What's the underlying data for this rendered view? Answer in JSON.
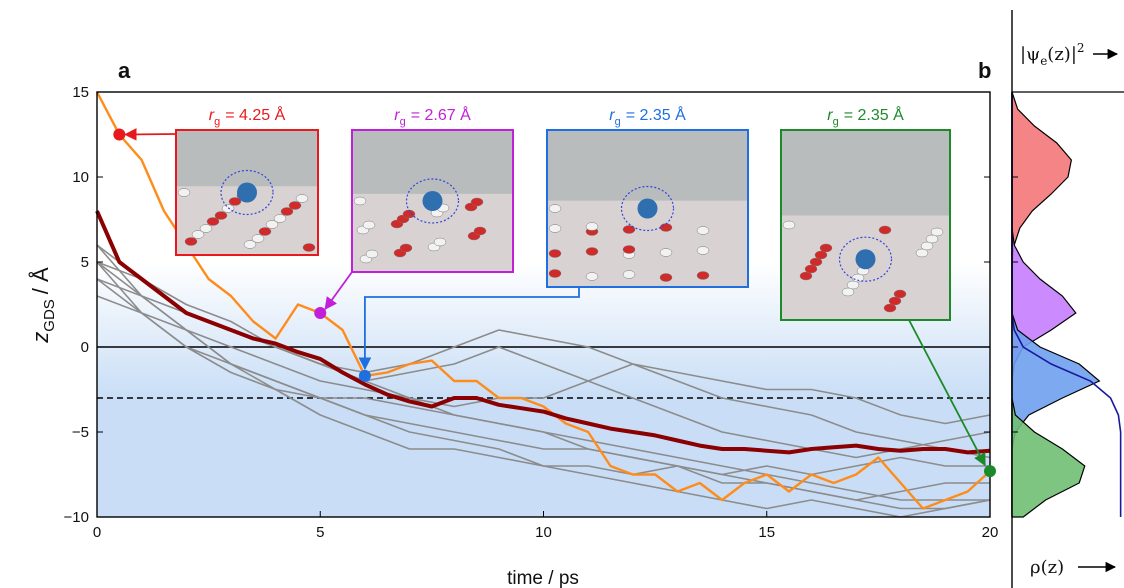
{
  "chart_data": [
    {
      "type": "line",
      "panel_label": "a",
      "xlabel": "time / ps",
      "ylabel": {
        "var": "z",
        "sub": "GDS",
        "text": "/ Å"
      },
      "xlim": [
        0,
        20
      ],
      "ylim": [
        -10,
        15
      ],
      "xticks": [
        0,
        5,
        10,
        15,
        20
      ],
      "yticks": [
        {
          "value": -10,
          "label": "−10"
        },
        {
          "value": -5,
          "label": "−5"
        },
        0,
        5,
        10,
        15
      ],
      "hlines": [
        {
          "y": 0,
          "style": "solid"
        },
        {
          "y": -3,
          "style": "dashed"
        }
      ],
      "series": [
        {
          "color": "#8c8c8c",
          "x": [
            0,
            1,
            2,
            3,
            4,
            5,
            6,
            7,
            8,
            9,
            10,
            11,
            12,
            13,
            14,
            15,
            16,
            17,
            18,
            19,
            20
          ],
          "values": [
            5,
            3,
            2,
            1,
            0,
            -1,
            -2,
            -3,
            -4,
            -4.5,
            -5,
            -5.5,
            -6,
            -6.5,
            -7,
            -7.5,
            -8,
            -8.5,
            -9,
            -9,
            -9
          ]
        },
        {
          "color": "#8c8c8c",
          "x": [
            0,
            1,
            2,
            3,
            4,
            5,
            6,
            7,
            8,
            9,
            10,
            11,
            12,
            13,
            14,
            15,
            16,
            17,
            18,
            19,
            20
          ],
          "values": [
            6,
            4,
            2.5,
            1.5,
            0,
            -1,
            -2,
            -1.5,
            -1,
            0,
            -1,
            -2,
            -3,
            -4,
            -5,
            -5.5,
            -6,
            -6.5,
            -6,
            -5.5,
            -5
          ]
        },
        {
          "color": "#8c8c8c",
          "x": [
            0,
            1,
            2,
            3,
            4,
            5,
            6,
            7,
            8,
            9,
            10,
            11,
            12,
            13,
            14,
            15,
            16,
            17,
            18,
            19,
            20
          ],
          "values": [
            4,
            3,
            1,
            -1,
            -2,
            -3,
            -3,
            -3.5,
            -4,
            -4.5,
            -5,
            -6,
            -6.5,
            -7,
            -8,
            -8,
            -8.5,
            -9,
            -8.5,
            -8,
            -8
          ]
        },
        {
          "color": "#8c8c8c",
          "x": [
            0,
            1,
            2,
            3,
            4,
            5,
            6,
            7,
            8,
            9,
            10,
            11,
            12,
            13,
            14,
            15,
            16,
            17,
            18,
            19,
            20
          ],
          "values": [
            5,
            2,
            0,
            -1.5,
            -2.5,
            -3,
            -4,
            -4.5,
            -5,
            -5.5,
            -6,
            -6,
            -6.5,
            -7,
            -7.5,
            -8,
            -8.5,
            -9,
            -9.5,
            -9.5,
            -9
          ]
        },
        {
          "color": "#8c8c8c",
          "x": [
            0,
            1,
            2,
            3,
            4,
            5,
            6,
            7,
            8,
            9,
            10,
            11,
            12,
            13,
            14,
            15,
            16,
            17,
            18,
            19,
            20
          ],
          "values": [
            3,
            2,
            0,
            -1,
            -2,
            -3,
            -4,
            -5,
            -5.5,
            -6,
            -7,
            -7.5,
            -8,
            -8.5,
            -9,
            -9.5,
            -9,
            -9.5,
            -10,
            -9.5,
            -9
          ]
        },
        {
          "color": "#8c8c8c",
          "x": [
            0,
            1,
            2,
            3,
            4,
            5,
            6,
            7,
            8,
            9,
            10,
            11,
            12,
            13,
            14,
            15,
            16,
            17,
            18,
            19,
            20
          ],
          "values": [
            5,
            4,
            2,
            1,
            0,
            -1,
            -1.5,
            -1,
            0,
            1,
            0.5,
            0,
            -1,
            -1.5,
            -2,
            -2.5,
            -2.5,
            -3,
            -4,
            -4.5,
            -4
          ]
        },
        {
          "color": "#8c8c8c",
          "x": [
            0,
            1,
            2,
            3,
            4,
            5,
            6,
            7,
            8,
            9,
            10,
            11,
            12,
            13,
            14,
            15,
            16,
            17,
            18,
            19,
            20
          ],
          "values": [
            4,
            2,
            1,
            0,
            -1,
            -2,
            -2.5,
            -3,
            -3.5,
            -3,
            -3,
            -2,
            -1,
            -2,
            -3,
            -3.5,
            -4,
            -5,
            -5.5,
            -6,
            -6.5
          ]
        },
        {
          "color": "#8c8c8c",
          "x": [
            0,
            1,
            2,
            3,
            4,
            5,
            6,
            7,
            8,
            9,
            10,
            11,
            12,
            13,
            14,
            15,
            16,
            17,
            18,
            19,
            20
          ],
          "values": [
            6,
            3,
            1,
            -1,
            -2.5,
            -4,
            -5,
            -6,
            -6,
            -6.5,
            -7,
            -7,
            -7.5,
            -7,
            -7.5,
            -7,
            -7.5,
            -7,
            -6.5,
            -7,
            -7
          ]
        },
        {
          "color": "#ff8c1a",
          "x": [
            0,
            0.5,
            1,
            1.5,
            2,
            2.5,
            3,
            3.5,
            4,
            4.5,
            5,
            5.5,
            6,
            6.5,
            7,
            7.5,
            8,
            8.5,
            9,
            9.5,
            10,
            10.5,
            11,
            11.5,
            12,
            12.5,
            13,
            13.5,
            14,
            14.5,
            15,
            15.5,
            16,
            16.5,
            17,
            17.5,
            18,
            18.5,
            19,
            19.5,
            20
          ],
          "values": [
            15,
            12.5,
            11,
            8,
            6,
            4,
            3,
            1.5,
            0.5,
            2.5,
            2,
            1,
            -1.7,
            -1.5,
            -1,
            -0.8,
            -2,
            -2,
            -3,
            -3,
            -3.5,
            -4.5,
            -5,
            -7,
            -7.5,
            -7.5,
            -8.5,
            -8,
            -9,
            -8,
            -7.5,
            -8.5,
            -7.5,
            -8,
            -7.5,
            -6.5,
            -8,
            -9.5,
            -9,
            -8.5,
            -7.3
          ]
        },
        {
          "color": "#8b0000",
          "x": [
            0,
            0.5,
            1,
            1.5,
            2,
            2.5,
            3,
            3.5,
            4,
            4.5,
            5,
            5.5,
            6,
            6.5,
            7,
            7.5,
            8,
            8.5,
            9,
            9.5,
            10,
            10.5,
            11,
            11.5,
            12,
            12.5,
            13,
            13.5,
            14,
            14.5,
            15,
            15.5,
            16,
            16.5,
            17,
            17.5,
            18,
            18.5,
            19,
            19.5,
            20
          ],
          "values": [
            8,
            5,
            4,
            3,
            2,
            1.5,
            1,
            0.5,
            0.2,
            -0.3,
            -0.7,
            -1.5,
            -2.2,
            -2.8,
            -3.2,
            -3.5,
            -3,
            -3,
            -3.4,
            -3.6,
            -3.8,
            -4.2,
            -4.5,
            -4.8,
            -5,
            -5.2,
            -5.5,
            -5.8,
            -6,
            -6,
            -6.1,
            -6.2,
            -6,
            -5.9,
            -5.8,
            -6,
            -6.1,
            -6,
            -6,
            -6.2,
            -6.1
          ]
        }
      ],
      "annotations": [
        {
          "x": 0.5,
          "y": 12.5,
          "color": "#e8191c",
          "label": {
            "var": "r",
            "sub": "g",
            "text": "= 4.25 Å"
          }
        },
        {
          "x": 5,
          "y": 2,
          "color": "#c21fd9",
          "label": {
            "var": "r",
            "sub": "g",
            "text": "= 2.67 Å"
          }
        },
        {
          "x": 6,
          "y": -1.7,
          "color": "#1f6fe0",
          "label": {
            "var": "r",
            "sub": "g",
            "text": "= 2.35 Å"
          }
        },
        {
          "x": 20,
          "y": -7.3,
          "color": "#1d8a2a",
          "label": {
            "var": "r",
            "sub": "g",
            "text": "= 2.35 Å"
          }
        }
      ]
    },
    {
      "type": "area",
      "panel_label": "b",
      "top_label": {
        "pre": "|ψ",
        "sub": "e",
        "post": "(z)|",
        "sup": "2"
      },
      "bottom_label": "ρ(z)",
      "xlim": [
        0,
        1
      ],
      "ylim": [
        -10,
        15
      ],
      "z": [
        15,
        14,
        13,
        12,
        11,
        10,
        9,
        8,
        7,
        6,
        5,
        4,
        3,
        2,
        1,
        0,
        -1,
        -2,
        -3,
        -4,
        -5,
        -6,
        -7,
        -8,
        -9,
        -10
      ],
      "series": [
        {
          "color": "#f4777a",
          "values": [
            0,
            0.05,
            0.2,
            0.4,
            0.53,
            0.5,
            0.35,
            0.18,
            0.07,
            0.02,
            0,
            0,
            0,
            0,
            0,
            0,
            0,
            0,
            0,
            0,
            0,
            0,
            0,
            0,
            0,
            0
          ]
        },
        {
          "color": "#c77dff",
          "values": [
            0,
            0,
            0,
            0,
            0,
            0,
            0,
            0,
            0,
            0.02,
            0.1,
            0.25,
            0.45,
            0.57,
            0.35,
            0.1,
            0.02,
            0,
            0,
            0,
            0,
            0,
            0,
            0,
            0,
            0
          ]
        },
        {
          "color": "#6fa0f0",
          "values": [
            0,
            0,
            0,
            0,
            0,
            0,
            0,
            0,
            0,
            0,
            0,
            0,
            0,
            0,
            0.05,
            0.25,
            0.6,
            0.78,
            0.45,
            0.15,
            0.03,
            0,
            0,
            0,
            0,
            0
          ]
        },
        {
          "color": "#6fbf73",
          "values": [
            0,
            0,
            0,
            0,
            0,
            0,
            0,
            0,
            0,
            0,
            0,
            0,
            0,
            0,
            0,
            0,
            0,
            0,
            0,
            0.03,
            0.2,
            0.45,
            0.65,
            0.6,
            0.3,
            0.1
          ]
        },
        {
          "color": "#1a1a9e",
          "style": "line",
          "values": [
            0,
            0,
            0,
            0,
            0,
            0,
            0,
            0,
            0,
            0,
            0,
            0,
            0,
            0,
            0.02,
            0.1,
            0.35,
            0.7,
            0.88,
            0.95,
            0.97,
            0.97,
            0.97,
            0.97,
            0.97,
            0.97
          ]
        }
      ]
    }
  ]
}
